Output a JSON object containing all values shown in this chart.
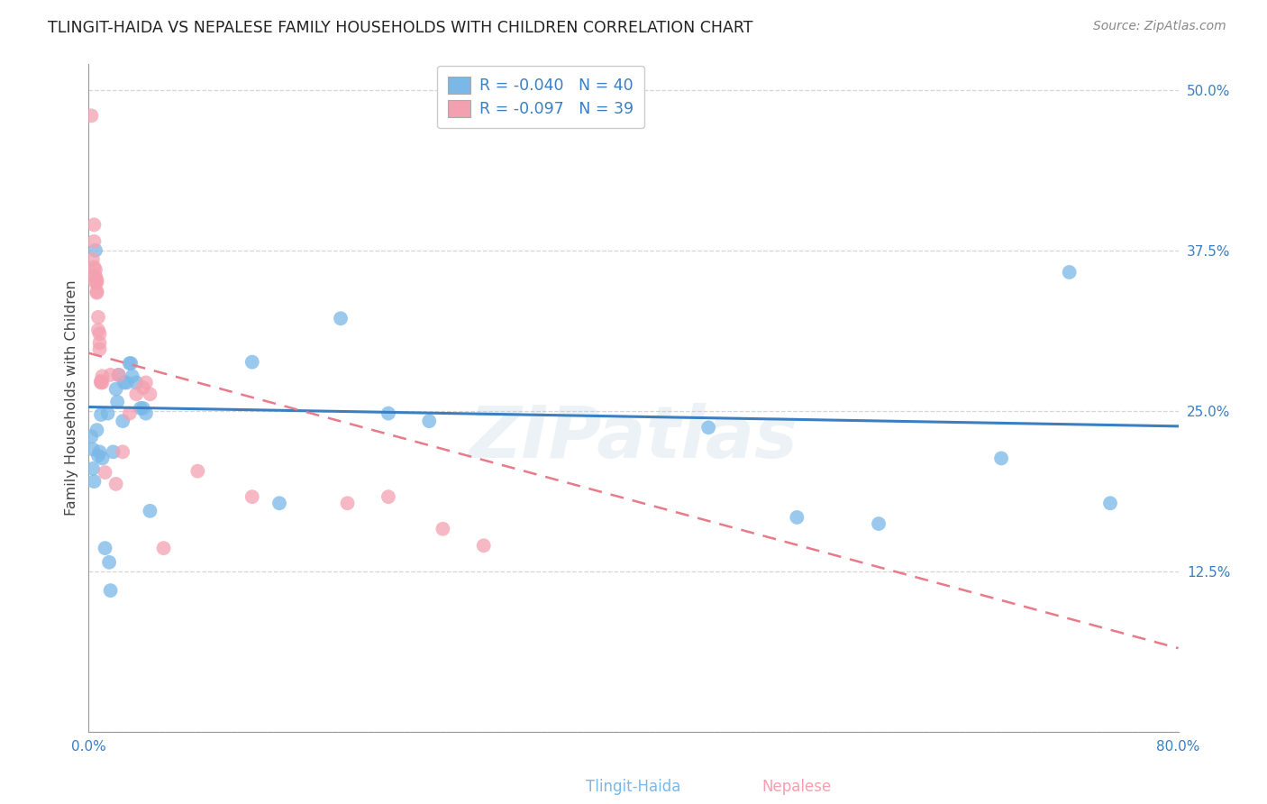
{
  "title": "TLINGIT-HAIDA VS NEPALESE FAMILY HOUSEHOLDS WITH CHILDREN CORRELATION CHART",
  "source": "Source: ZipAtlas.com",
  "ylabel": "Family Households with Children",
  "xmin": 0.0,
  "xmax": 0.8,
  "ymin": 0.0,
  "ymax": 0.52,
  "yticks": [
    0.0,
    0.125,
    0.25,
    0.375,
    0.5
  ],
  "yticklabels": [
    "",
    "12.5%",
    "25.0%",
    "37.5%",
    "50.0%"
  ],
  "xticks": [
    0.0,
    0.1,
    0.2,
    0.3,
    0.4,
    0.5,
    0.6,
    0.7,
    0.8
  ],
  "xticklabels": [
    "0.0%",
    "",
    "",
    "",
    "",
    "",
    "",
    "",
    "80.0%"
  ],
  "watermark": "ZIPatlas",
  "tlingit_color": "#7ab8e8",
  "nepalese_color": "#f4a0b0",
  "trendline_tlingit_color": "#3a7fc1",
  "trendline_nepalese_color": "#e87a8a",
  "background_color": "#ffffff",
  "tlingit_trend_x0": 0.0,
  "tlingit_trend_y0": 0.253,
  "tlingit_trend_x1": 0.8,
  "tlingit_trend_y1": 0.238,
  "nepalese_trend_x0": 0.0,
  "nepalese_trend_y0": 0.295,
  "nepalese_trend_x1": 0.8,
  "nepalese_trend_y1": 0.065,
  "tlingit_x": [
    0.002,
    0.003,
    0.003,
    0.004,
    0.005,
    0.006,
    0.007,
    0.008,
    0.009,
    0.01,
    0.012,
    0.014,
    0.015,
    0.016,
    0.018,
    0.02,
    0.021,
    0.022,
    0.025,
    0.026,
    0.028,
    0.03,
    0.031,
    0.032,
    0.035,
    0.038,
    0.04,
    0.042,
    0.045,
    0.12,
    0.14,
    0.185,
    0.22,
    0.25,
    0.455,
    0.52,
    0.58,
    0.67,
    0.72,
    0.75
  ],
  "tlingit_y": [
    0.23,
    0.22,
    0.205,
    0.195,
    0.375,
    0.235,
    0.215,
    0.218,
    0.247,
    0.213,
    0.143,
    0.248,
    0.132,
    0.11,
    0.218,
    0.267,
    0.257,
    0.278,
    0.242,
    0.272,
    0.272,
    0.287,
    0.287,
    0.277,
    0.272,
    0.252,
    0.252,
    0.248,
    0.172,
    0.288,
    0.178,
    0.322,
    0.248,
    0.242,
    0.237,
    0.167,
    0.162,
    0.213,
    0.358,
    0.178
  ],
  "nepalese_x": [
    0.002,
    0.003,
    0.003,
    0.004,
    0.004,
    0.004,
    0.005,
    0.005,
    0.005,
    0.006,
    0.006,
    0.006,
    0.006,
    0.007,
    0.007,
    0.008,
    0.008,
    0.008,
    0.009,
    0.009,
    0.01,
    0.01,
    0.012,
    0.016,
    0.02,
    0.022,
    0.025,
    0.03,
    0.035,
    0.04,
    0.042,
    0.045,
    0.055,
    0.08,
    0.12,
    0.19,
    0.22,
    0.26,
    0.29
  ],
  "nepalese_y": [
    0.48,
    0.355,
    0.368,
    0.362,
    0.382,
    0.395,
    0.35,
    0.355,
    0.36,
    0.343,
    0.352,
    0.342,
    0.35,
    0.313,
    0.323,
    0.298,
    0.303,
    0.31,
    0.272,
    0.273,
    0.277,
    0.272,
    0.202,
    0.278,
    0.193,
    0.278,
    0.218,
    0.248,
    0.263,
    0.268,
    0.272,
    0.263,
    0.143,
    0.203,
    0.183,
    0.178,
    0.183,
    0.158,
    0.145
  ]
}
